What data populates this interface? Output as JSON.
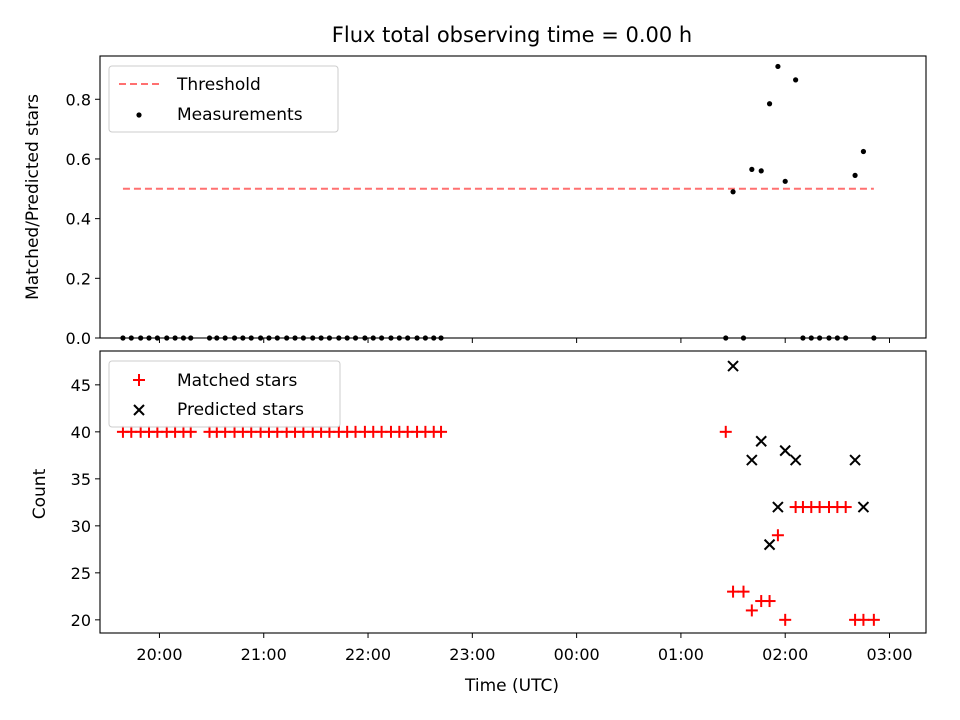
{
  "chart_data": [
    {
      "type": "scatter",
      "title": "Flux total observing time = 0.00 h",
      "xlabel": "",
      "ylabel": "Matched/Predicted stars",
      "xlim": [
        19.43,
        27.35
      ],
      "ylim": [
        0.0,
        0.945
      ],
      "yticks": [
        0.0,
        0.2,
        0.4,
        0.6,
        0.8
      ],
      "ytick_labels": [
        "0.0",
        "0.2",
        "0.4",
        "0.6",
        "0.8"
      ],
      "legend_placement": "upper-left",
      "threshold": {
        "name": "Threshold",
        "value": 0.5,
        "x_range": [
          19.65,
          26.85
        ],
        "color": "#ff7070"
      },
      "measurements": {
        "name": "Measurements",
        "color": "#000000",
        "points": [
          [
            19.65,
            0
          ],
          [
            19.73,
            0
          ],
          [
            19.82,
            0
          ],
          [
            19.9,
            0
          ],
          [
            19.98,
            0
          ],
          [
            20.07,
            0
          ],
          [
            20.15,
            0
          ],
          [
            20.23,
            0
          ],
          [
            20.3,
            0
          ],
          [
            20.48,
            0
          ],
          [
            20.55,
            0
          ],
          [
            20.63,
            0
          ],
          [
            20.72,
            0
          ],
          [
            20.8,
            0
          ],
          [
            20.88,
            0
          ],
          [
            20.97,
            0
          ],
          [
            21.05,
            0
          ],
          [
            21.13,
            0
          ],
          [
            21.22,
            0
          ],
          [
            21.3,
            0
          ],
          [
            21.38,
            0
          ],
          [
            21.47,
            0
          ],
          [
            21.55,
            0
          ],
          [
            21.63,
            0
          ],
          [
            21.72,
            0
          ],
          [
            21.8,
            0
          ],
          [
            21.88,
            0
          ],
          [
            21.97,
            0
          ],
          [
            22.05,
            0
          ],
          [
            22.13,
            0
          ],
          [
            22.22,
            0
          ],
          [
            22.3,
            0
          ],
          [
            22.38,
            0
          ],
          [
            22.47,
            0
          ],
          [
            22.55,
            0
          ],
          [
            22.63,
            0
          ],
          [
            22.7,
            0
          ],
          [
            25.43,
            0
          ],
          [
            25.6,
            0
          ],
          [
            25.5,
            0.49
          ],
          [
            25.68,
            0.565
          ],
          [
            25.77,
            0.56
          ],
          [
            25.85,
            0.785
          ],
          [
            25.93,
            0.91
          ],
          [
            26.0,
            0.525
          ],
          [
            26.1,
            0.865
          ],
          [
            26.17,
            0
          ],
          [
            26.25,
            0
          ],
          [
            26.33,
            0
          ],
          [
            26.42,
            0
          ],
          [
            26.5,
            0
          ],
          [
            26.58,
            0
          ],
          [
            26.67,
            0.545
          ],
          [
            26.75,
            0.625
          ],
          [
            26.85,
            0
          ]
        ]
      }
    },
    {
      "type": "scatter",
      "xlabel": "Time (UTC)",
      "ylabel": "Count",
      "xlim": [
        19.43,
        27.35
      ],
      "ylim": [
        18.6,
        48.6
      ],
      "xticks": [
        20,
        21,
        22,
        23,
        24,
        25,
        26,
        27
      ],
      "xtick_labels": [
        "20:00",
        "21:00",
        "22:00",
        "23:00",
        "00:00",
        "01:00",
        "02:00",
        "03:00"
      ],
      "yticks": [
        20,
        25,
        30,
        35,
        40,
        45
      ],
      "ytick_labels": [
        "20",
        "25",
        "30",
        "35",
        "40",
        "45"
      ],
      "legend_placement": "upper-left",
      "series": [
        {
          "name": "Matched stars",
          "marker": "+",
          "color": "#ff0000",
          "points": [
            [
              19.65,
              40
            ],
            [
              19.73,
              40
            ],
            [
              19.82,
              40
            ],
            [
              19.9,
              40
            ],
            [
              19.98,
              40
            ],
            [
              20.07,
              40
            ],
            [
              20.15,
              40
            ],
            [
              20.23,
              40
            ],
            [
              20.3,
              40
            ],
            [
              20.48,
              40
            ],
            [
              20.55,
              40
            ],
            [
              20.63,
              40
            ],
            [
              20.72,
              40
            ],
            [
              20.8,
              40
            ],
            [
              20.88,
              40
            ],
            [
              20.97,
              40
            ],
            [
              21.05,
              40
            ],
            [
              21.13,
              40
            ],
            [
              21.22,
              40
            ],
            [
              21.3,
              40
            ],
            [
              21.38,
              40
            ],
            [
              21.47,
              40
            ],
            [
              21.55,
              40
            ],
            [
              21.63,
              40
            ],
            [
              21.72,
              40
            ],
            [
              21.8,
              40
            ],
            [
              21.88,
              40
            ],
            [
              21.97,
              40
            ],
            [
              22.05,
              40
            ],
            [
              22.13,
              40
            ],
            [
              22.22,
              40
            ],
            [
              22.3,
              40
            ],
            [
              22.38,
              40
            ],
            [
              22.47,
              40
            ],
            [
              22.55,
              40
            ],
            [
              22.63,
              40
            ],
            [
              22.7,
              40
            ],
            [
              25.43,
              40
            ],
            [
              25.5,
              23
            ],
            [
              25.6,
              23
            ],
            [
              25.68,
              21
            ],
            [
              25.77,
              22
            ],
            [
              25.85,
              22
            ],
            [
              25.93,
              29
            ],
            [
              26.0,
              20
            ],
            [
              26.1,
              32
            ],
            [
              26.17,
              32
            ],
            [
              26.25,
              32
            ],
            [
              26.33,
              32
            ],
            [
              26.42,
              32
            ],
            [
              26.5,
              32
            ],
            [
              26.58,
              32
            ],
            [
              26.67,
              20
            ],
            [
              26.75,
              20
            ],
            [
              26.85,
              20
            ]
          ]
        },
        {
          "name": "Predicted stars",
          "marker": "x",
          "color": "#000000",
          "points": [
            [
              25.5,
              47
            ],
            [
              25.68,
              37
            ],
            [
              25.77,
              39
            ],
            [
              25.85,
              28
            ],
            [
              25.93,
              32
            ],
            [
              26.0,
              38
            ],
            [
              26.1,
              37
            ],
            [
              26.67,
              37
            ],
            [
              26.75,
              32
            ]
          ]
        }
      ]
    }
  ]
}
